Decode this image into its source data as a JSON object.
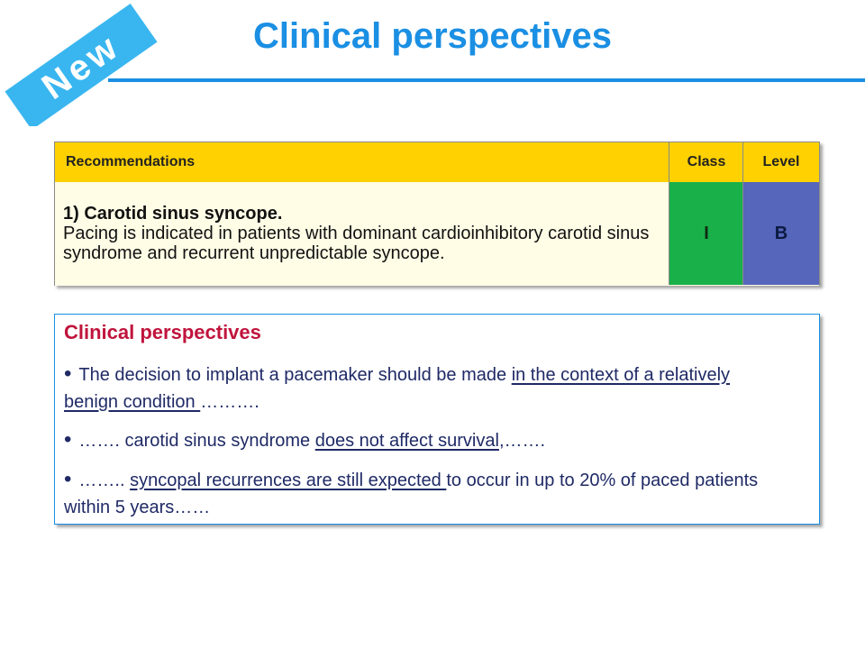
{
  "page": {
    "title": "Clinical perspectives",
    "badge": "New"
  },
  "recommendations_table": {
    "headers": {
      "recommendations": "Recommendations",
      "class": "Class",
      "level": "Level"
    },
    "rows": [
      {
        "title": "1) Carotid sinus syncope.",
        "text": "Pacing is indicated in patients with dominant cardioinhibitory carotid sinus syndrome and recurrent unpredictable syncope.",
        "class": "I",
        "level": "B"
      }
    ],
    "colors": {
      "header_bg": "#ffd100",
      "row_bg": "#fffde6",
      "class_bg": "#19b04a",
      "level_bg": "#5566bb"
    }
  },
  "perspectives": {
    "title": "Clinical perspectives",
    "bullets": [
      {
        "pre": "The decision to implant a pacemaker should be made ",
        "underlined": "in the context of a relatively benign condition ",
        "post": "………."
      },
      {
        "pre": "……. carotid sinus syndrome ",
        "underlined": "does not affect survival",
        "post": ",……."
      },
      {
        "pre": "…….. ",
        "underlined": "syncopal recurrences are still expected ",
        "post": "to occur in up to 20% of paced patients within 5 years……"
      }
    ]
  },
  "colors": {
    "accent": "#1a8fe3",
    "badge": "#39b6f0",
    "perspective_title": "#c0143c",
    "bullet_text": "#1f2a66"
  }
}
